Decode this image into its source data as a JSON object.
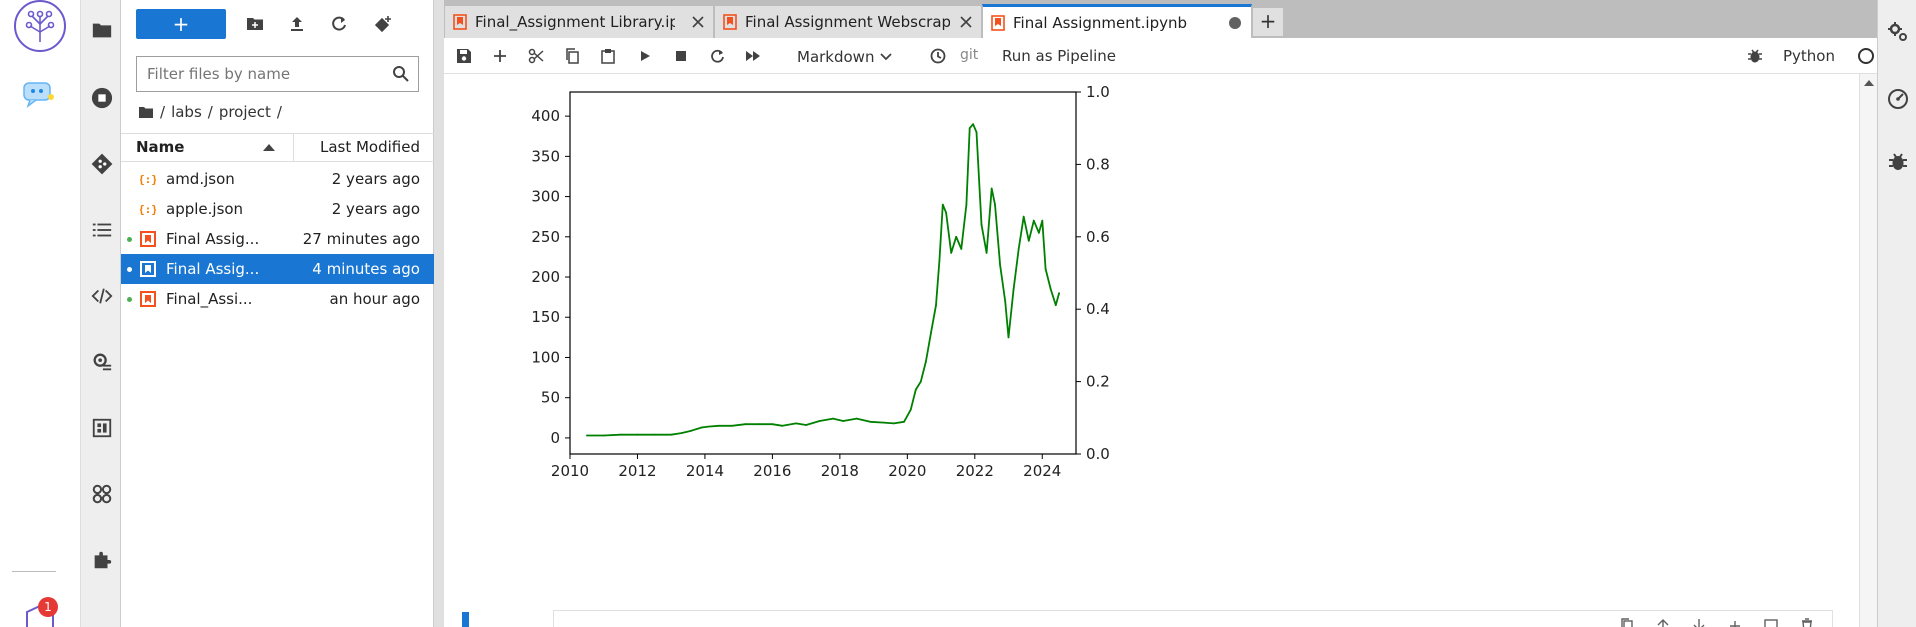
{
  "notifications": {
    "count": "1"
  },
  "file_browser": {
    "new_label": "+",
    "filter_placeholder": "Filter files by name",
    "breadcrumb": [
      "/",
      "labs",
      "/",
      "project",
      "/"
    ],
    "columns": {
      "name": "Name",
      "modified": "Last Modified"
    },
    "files": [
      {
        "name": "amd.json",
        "modified": "2 years ago",
        "type": "json",
        "running": false,
        "selected": false
      },
      {
        "name": "apple.json",
        "modified": "2 years ago",
        "type": "json",
        "running": false,
        "selected": false
      },
      {
        "name": "Final Assig...",
        "modified": "27 minutes ago",
        "type": "notebook",
        "running": true,
        "selected": false
      },
      {
        "name": "Final Assig...",
        "modified": "4 minutes ago",
        "type": "notebook",
        "running": true,
        "selected": true
      },
      {
        "name": "Final_Assi...",
        "modified": "an hour ago",
        "type": "notebook",
        "running": true,
        "selected": false
      }
    ]
  },
  "tabs": [
    {
      "label": "Final_Assignment Library.ipy",
      "active": false
    },
    {
      "label": "Final Assignment Webscrapi",
      "active": false
    },
    {
      "label": "Final Assignment.ipynb",
      "active": true
    }
  ],
  "add_tab_label": "+",
  "toolbar": {
    "cell_type": "Markdown",
    "git": "git",
    "run_pipeline": "Run as Pipeline",
    "kernel": "Python"
  },
  "colors": {
    "accent": "#1976d2",
    "line": "#008000",
    "json_icon": "#f57c00",
    "notebook_icon": "#f4511e"
  },
  "chart_data": {
    "type": "line",
    "title": "",
    "xlabel": "",
    "ylabel": "",
    "xlim": [
      2010,
      2025
    ],
    "ylim": [
      -20,
      430
    ],
    "y2lim": [
      0,
      1
    ],
    "xticks": [
      "2010",
      "2012",
      "2014",
      "2016",
      "2018",
      "2020",
      "2022",
      "2024"
    ],
    "yticks": [
      "0",
      "50",
      "100",
      "150",
      "200",
      "250",
      "300",
      "350",
      "400"
    ],
    "y2ticks": [
      "0.0",
      "0.2",
      "0.4",
      "0.6",
      "0.8",
      "1.0"
    ],
    "series": [
      {
        "color": "#008000",
        "x": [
          2010.5,
          2011.0,
          2011.5,
          2012.0,
          2012.5,
          2013.0,
          2013.3,
          2013.6,
          2013.9,
          2014.1,
          2014.4,
          2014.8,
          2015.2,
          2015.6,
          2016.0,
          2016.3,
          2016.7,
          2017.0,
          2017.4,
          2017.8,
          2018.1,
          2018.5,
          2018.9,
          2019.3,
          2019.6,
          2019.9,
          2020.1,
          2020.25,
          2020.4,
          2020.55,
          2020.7,
          2020.85,
          2020.95,
          2021.05,
          2021.15,
          2021.3,
          2021.45,
          2021.6,
          2021.75,
          2021.85,
          2021.95,
          2022.05,
          2022.2,
          2022.35,
          2022.5,
          2022.6,
          2022.75,
          2022.9,
          2023.0,
          2023.15,
          2023.3,
          2023.45,
          2023.6,
          2023.75,
          2023.9,
          2024.0,
          2024.1,
          2024.25,
          2024.4,
          2024.5
        ],
        "y": [
          3,
          3,
          4,
          4,
          4,
          4,
          6,
          9,
          13,
          14,
          15,
          15,
          17,
          17,
          17,
          15,
          18,
          16,
          21,
          24,
          21,
          24,
          20,
          19,
          18,
          20,
          35,
          60,
          70,
          95,
          130,
          165,
          220,
          290,
          280,
          230,
          250,
          235,
          290,
          385,
          390,
          380,
          265,
          230,
          310,
          290,
          215,
          170,
          125,
          185,
          235,
          275,
          245,
          270,
          255,
          270,
          210,
          185,
          165,
          180
        ]
      }
    ]
  }
}
